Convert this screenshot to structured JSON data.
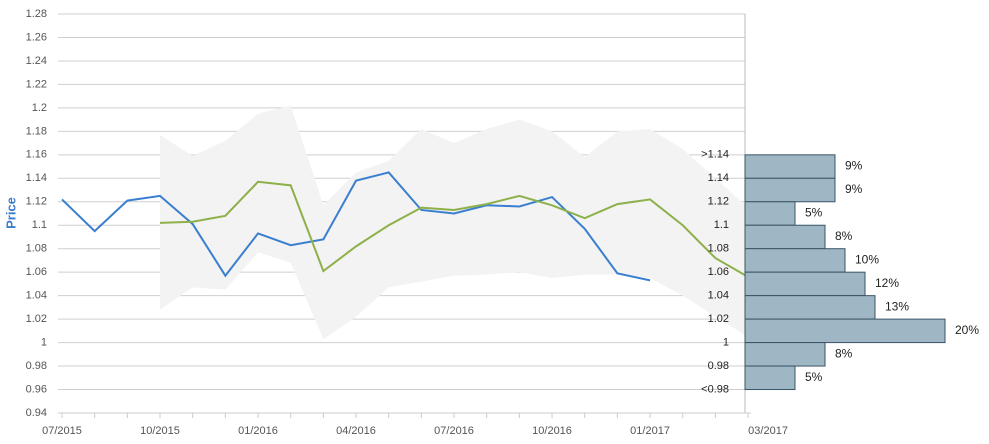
{
  "chart_data": [
    {
      "type": "line",
      "y_label": "Price",
      "y_label_color": "#3d7cc9",
      "categories": [
        "07/2015",
        null,
        null,
        "10/2015",
        null,
        null,
        "01/2016",
        null,
        null,
        "04/2016",
        null,
        null,
        "07/2016",
        null,
        null,
        "10/2016",
        null,
        null,
        "01/2017",
        null,
        null,
        "03/2017"
      ],
      "ylim": [
        0.94,
        1.28
      ],
      "yticks": [
        0.94,
        0.96,
        0.98,
        1,
        1.02,
        1.04,
        1.06,
        1.08,
        1.1,
        1.12,
        1.14,
        1.16,
        1.18,
        1.2,
        1.22,
        1.24,
        1.26,
        1.28
      ],
      "grid": true,
      "band": {
        "color": "#f3f3f3",
        "upper": [
          null,
          null,
          null,
          1.177,
          1.159,
          1.172,
          1.195,
          1.202,
          1.117,
          1.145,
          1.155,
          1.182,
          1.17,
          1.182,
          1.19,
          1.18,
          1.158,
          1.18,
          1.182,
          1.165,
          1.14,
          1.115
        ],
        "lower": [
          null,
          null,
          null,
          1.028,
          1.047,
          1.045,
          1.077,
          1.068,
          1.003,
          1.022,
          1.047,
          1.052,
          1.057,
          1.058,
          1.06,
          1.055,
          1.058,
          1.058,
          1.055,
          1.04,
          1.022,
          1.005
        ]
      },
      "series": [
        {
          "color": "#3a7fcf",
          "values": [
            1.122,
            1.095,
            1.121,
            1.125,
            1.101,
            1.057,
            1.093,
            1.083,
            1.088,
            1.138,
            1.145,
            1.113,
            1.11,
            1.117,
            1.116,
            1.124,
            1.097,
            1.059,
            1.053,
            null,
            null,
            null
          ]
        },
        {
          "color": "#8db04a",
          "values": [
            null,
            null,
            null,
            1.102,
            1.103,
            1.108,
            1.137,
            1.134,
            1.061,
            1.082,
            1.1,
            1.115,
            1.113,
            1.118,
            1.125,
            1.117,
            1.106,
            1.118,
            1.122,
            1.1,
            1.072,
            1.056
          ]
        }
      ]
    },
    {
      "type": "hbar",
      "color": "#9fb6c5",
      "edge_color": "#3a5566",
      "edges": [
        {
          "value": 1.16,
          "label": ">1.14"
        },
        1.14,
        1.12,
        {
          "value": 1.1,
          "label": "1.1"
        },
        1.08,
        1.06,
        1.04,
        1.02,
        1,
        0.98,
        {
          "value": 0.96,
          "label": "<0.98"
        }
      ],
      "values": [
        9,
        9,
        5,
        8,
        10,
        12,
        13,
        20,
        8,
        5
      ],
      "value_labels": [
        "9%",
        "9%",
        "5%",
        "8%",
        "10%",
        "12%",
        "13%",
        "20%",
        "8%",
        "5%"
      ]
    }
  ]
}
